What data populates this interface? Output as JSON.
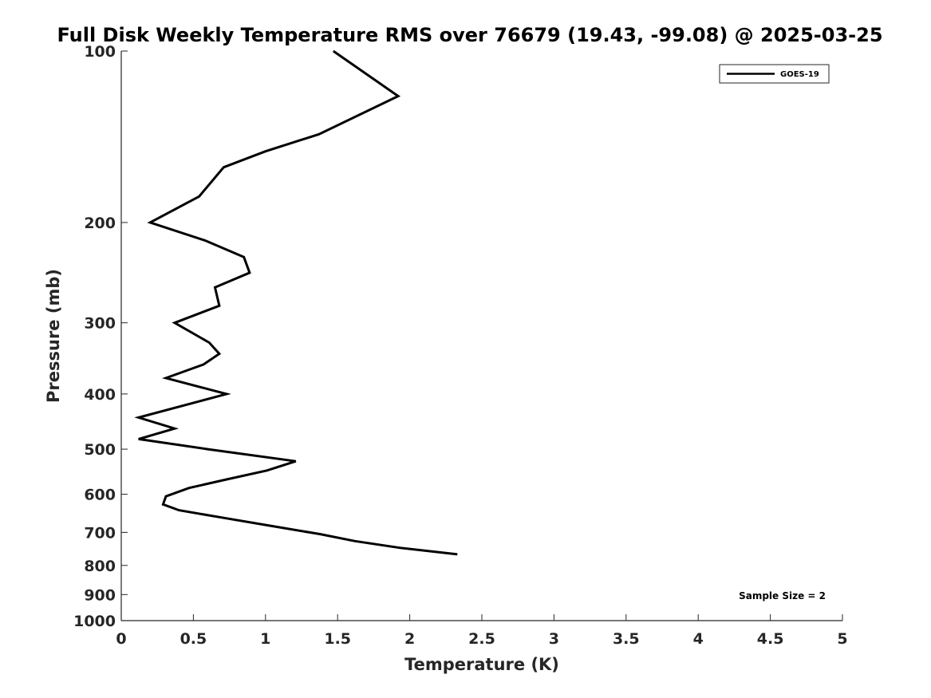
{
  "chart_data": {
    "type": "line",
    "title": "Full Disk Weekly Temperature RMS over 76679 (19.43, -99.08) @ 2025-03-25",
    "xlabel": "Temperature (K)",
    "ylabel": "Pressure (mb)",
    "xlim": [
      0,
      5
    ],
    "ylim": [
      1000,
      100
    ],
    "yscale": "log",
    "y_reversed": true,
    "grid": false,
    "legend_position": "top-right",
    "x_ticks": [
      0,
      0.5,
      1,
      1.5,
      2,
      2.5,
      3,
      3.5,
      4,
      4.5,
      5
    ],
    "x_tick_labels": [
      "0",
      "0.5",
      "1",
      "1.5",
      "2",
      "2.5",
      "3",
      "3.5",
      "4",
      "4.5",
      "5"
    ],
    "y_ticks": [
      100,
      200,
      300,
      400,
      500,
      600,
      700,
      800,
      900,
      1000
    ],
    "y_tick_labels": [
      "100",
      "200",
      "300",
      "400",
      "500",
      "600",
      "700",
      "800",
      "900",
      "1000"
    ],
    "series": [
      {
        "name": "GOES-19",
        "color": "#000000",
        "points": [
          {
            "x": 1.47,
            "y": 100
          },
          {
            "x": 1.92,
            "y": 120
          },
          {
            "x": 1.37,
            "y": 140
          },
          {
            "x": 1.0,
            "y": 150
          },
          {
            "x": 0.71,
            "y": 160
          },
          {
            "x": 0.54,
            "y": 180
          },
          {
            "x": 0.2,
            "y": 200
          },
          {
            "x": 0.58,
            "y": 215
          },
          {
            "x": 0.85,
            "y": 230
          },
          {
            "x": 0.89,
            "y": 245
          },
          {
            "x": 0.65,
            "y": 260
          },
          {
            "x": 0.68,
            "y": 280
          },
          {
            "x": 0.37,
            "y": 300
          },
          {
            "x": 0.61,
            "y": 325
          },
          {
            "x": 0.68,
            "y": 340
          },
          {
            "x": 0.57,
            "y": 355
          },
          {
            "x": 0.31,
            "y": 375
          },
          {
            "x": 0.73,
            "y": 400
          },
          {
            "x": 0.12,
            "y": 440
          },
          {
            "x": 0.37,
            "y": 460
          },
          {
            "x": 0.12,
            "y": 480
          },
          {
            "x": 0.6,
            "y": 500
          },
          {
            "x": 1.21,
            "y": 525
          },
          {
            "x": 1.01,
            "y": 545
          },
          {
            "x": 0.73,
            "y": 565
          },
          {
            "x": 0.47,
            "y": 585
          },
          {
            "x": 0.31,
            "y": 605
          },
          {
            "x": 0.29,
            "y": 625
          },
          {
            "x": 0.4,
            "y": 640
          },
          {
            "x": 0.71,
            "y": 660
          },
          {
            "x": 1.01,
            "y": 680
          },
          {
            "x": 1.38,
            "y": 705
          },
          {
            "x": 1.62,
            "y": 725
          },
          {
            "x": 1.93,
            "y": 745
          },
          {
            "x": 2.33,
            "y": 765
          }
        ]
      }
    ],
    "annotation": "Sample Size = 2"
  }
}
